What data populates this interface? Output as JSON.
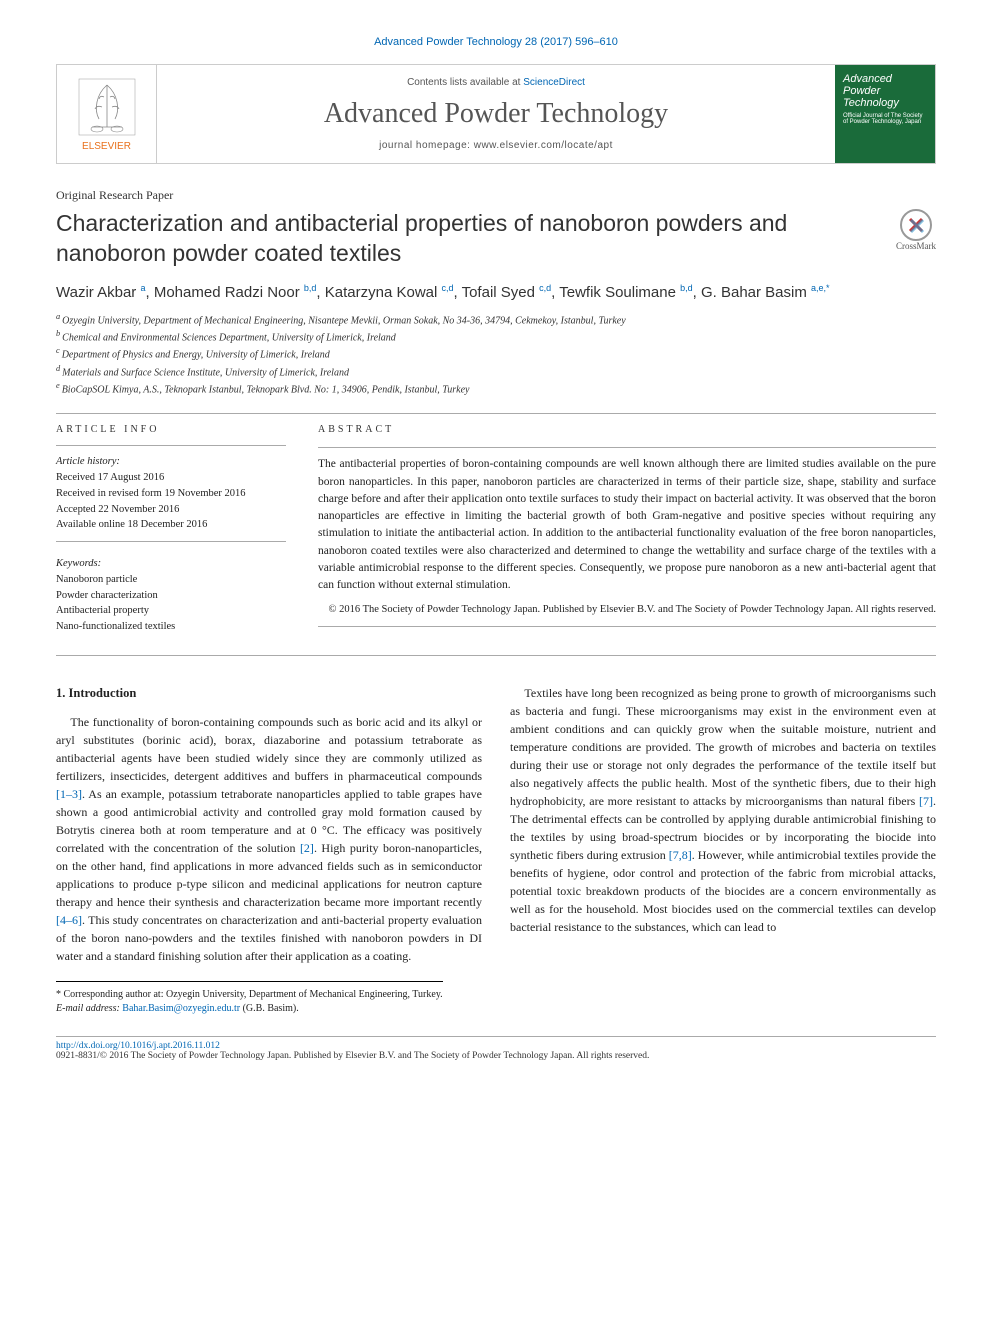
{
  "citation": "Advanced Powder Technology 28 (2017) 596–610",
  "header": {
    "contents_prefix": "Contents lists available at ",
    "contents_link": "ScienceDirect",
    "journal": "Advanced Powder Technology",
    "homepage": "journal homepage: www.elsevier.com/locate/apt",
    "publisher": "ELSEVIER",
    "cover_journal": "Advanced Powder Technology",
    "cover_sub": "Official Journal of The Society of Powder Technology, Japan"
  },
  "paper_type": "Original Research Paper",
  "title": "Characterization and antibacterial properties of nanoboron powders and nanoboron powder coated textiles",
  "crossmark": "CrossMark",
  "authors": [
    {
      "name": "Wazir Akbar",
      "aff": "a"
    },
    {
      "name": "Mohamed Radzi Noor",
      "aff": "b,d"
    },
    {
      "name": "Katarzyna Kowal",
      "aff": "c,d"
    },
    {
      "name": "Tofail Syed",
      "aff": "c,d"
    },
    {
      "name": "Tewfik Soulimane",
      "aff": "b,d"
    },
    {
      "name": "G. Bahar Basim",
      "aff": "a,e,*"
    }
  ],
  "affiliations": [
    {
      "sup": "a",
      "text": "Ozyegin University, Department of Mechanical Engineering, Nisantepe Mevkii, Orman Sokak, No 34-36, 34794, Cekmekoy, Istanbul, Turkey"
    },
    {
      "sup": "b",
      "text": "Chemical and Environmental Sciences Department, University of Limerick, Ireland"
    },
    {
      "sup": "c",
      "text": "Department of Physics and Energy, University of Limerick, Ireland"
    },
    {
      "sup": "d",
      "text": "Materials and Surface Science Institute, University of Limerick, Ireland"
    },
    {
      "sup": "e",
      "text": "BioCapSOL Kimya, A.S., Teknopark Istanbul, Teknopark Blvd. No: 1, 34906, Pendik, Istanbul, Turkey"
    }
  ],
  "article_info": {
    "header": "ARTICLE INFO",
    "history_label": "Article history:",
    "history": [
      "Received 17 August 2016",
      "Received in revised form 19 November 2016",
      "Accepted 22 November 2016",
      "Available online 18 December 2016"
    ],
    "keywords_label": "Keywords:",
    "keywords": [
      "Nanoboron particle",
      "Powder characterization",
      "Antibacterial property",
      "Nano-functionalized textiles"
    ]
  },
  "abstract": {
    "header": "ABSTRACT",
    "text": "The antibacterial properties of boron-containing compounds are well known although there are limited studies available on the pure boron nanoparticles. In this paper, nanoboron particles are characterized in terms of their particle size, shape, stability and surface charge before and after their application onto textile surfaces to study their impact on bacterial activity. It was observed that the boron nanoparticles are effective in limiting the bacterial growth of both Gram-negative and positive species without requiring any stimulation to initiate the antibacterial action. In addition to the antibacterial functionality evaluation of the free boron nanoparticles, nanoboron coated textiles were also characterized and determined to change the wettability and surface charge of the textiles with a variable antimicrobial response to the different species. Consequently, we propose pure nanoboron as a new anti-bacterial agent that can function without external stimulation.",
    "copyright": "© 2016 The Society of Powder Technology Japan. Published by Elsevier B.V. and The Society of Powder Technology Japan. All rights reserved."
  },
  "body": {
    "section_num": "1.",
    "section_title": "Introduction",
    "p1a": "The functionality of boron-containing compounds such as boric acid and its alkyl or aryl substitutes (borinic acid), borax, diazaborine and potassium tetraborate as antibacterial agents have been studied widely since they are commonly utilized as fertilizers, insecticides, detergent additives and buffers in pharmaceutical compounds ",
    "ref1": "[1–3]",
    "p1b": ". As an example, potassium tetraborate nanoparticles applied to table grapes have shown a good antimicrobial activity and controlled gray mold formation caused by Botrytis cinerea both at room temperature and at 0 °C. The efficacy was positively correlated with the concentration of the solution ",
    "ref2": "[2]",
    "p1c": ". High purity boron-nanoparticles, on the other hand, find applications in more advanced fields such as in semiconductor applications to produce p-type silicon and medicinal applications for neutron capture therapy and hence their synthesis and characterization became more important recently ",
    "ref3": "[4–6]",
    "p1d": ". This study concentrates on characterization and anti-bacterial property evaluation of the boron nano-powders and the textiles finished with nanoboron powders in DI water and a standard finishing solution after their application as a coating.",
    "p2a": "Textiles have long been recognized as being prone to growth of microorganisms such as bacteria and fungi. These microorganisms may exist in the environment even at ambient conditions and can quickly grow when the suitable moisture, nutrient and temperature conditions are provided. The growth of microbes and bacteria on textiles during their use or storage not only degrades the performance of the textile itself but also negatively affects the public health. Most of the synthetic fibers, due to their high hydrophobicity, are more resistant to attacks by microorganisms than natural fibers ",
    "ref4": "[7]",
    "p2b": ". The detrimental effects can be controlled by applying durable antimicrobial finishing to the textiles by using broad-spectrum biocides or by incorporating the biocide into synthetic fibers during extrusion ",
    "ref5": "[7,8]",
    "p2c": ". However, while antimicrobial textiles provide the benefits of hygiene, odor control and protection of the fabric from microbial attacks, potential toxic breakdown products of the biocides are a concern environmentally as well as for the household. Most biocides used on the commercial textiles can develop bacterial resistance to the substances, which can lead to"
  },
  "footnote": {
    "corresp": "* Corresponding author at: Ozyegin University, Department of Mechanical Engineering, Turkey.",
    "email_label": "E-mail address: ",
    "email": "Bahar.Basim@ozyegin.edu.tr",
    "email_paren": " (G.B. Basim)."
  },
  "footer": {
    "doi": "http://dx.doi.org/10.1016/j.apt.2016.11.012",
    "issn_line": "0921-8831/© 2016 The Society of Powder Technology Japan. Published by Elsevier B.V. and The Society of Powder Technology Japan. All rights reserved."
  }
}
